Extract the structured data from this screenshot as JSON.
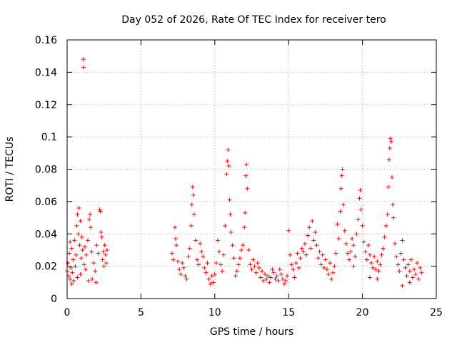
{
  "chart_data": {
    "type": "scatter",
    "title": "Day 052 of 2026, Rate Of TEC Index for receiver tero",
    "xlabel": "GPS time / hours",
    "ylabel": "ROTI / TECUs",
    "xlim": [
      0,
      25
    ],
    "ylim": [
      0,
      0.16
    ],
    "xticks": [
      0,
      5,
      10,
      15,
      20,
      25
    ],
    "xtick_labels": [
      "0",
      "5",
      "10",
      "15",
      "20",
      "25"
    ],
    "yticks": [
      0,
      0.02,
      0.04,
      0.06,
      0.08,
      0.1,
      0.12,
      0.14,
      0.16
    ],
    "ytick_labels": [
      "0",
      "0.02",
      "0.04",
      "0.06",
      "0.08",
      "0.1",
      "0.12",
      "0.14",
      "0.16"
    ],
    "grid": true,
    "marker": "+",
    "color": "#ff0000",
    "series": [
      {
        "points": [
          [
            0.0,
            0.017
          ],
          [
            0.05,
            0.022
          ],
          [
            0.1,
            0.014
          ],
          [
            0.15,
            0.028
          ],
          [
            0.2,
            0.012
          ],
          [
            0.25,
            0.019
          ],
          [
            0.3,
            0.031
          ],
          [
            0.35,
            0.016
          ],
          [
            0.4,
            0.024
          ],
          [
            0.45,
            0.011
          ],
          [
            0.5,
            0.036
          ],
          [
            0.55,
            0.02
          ],
          [
            0.6,
            0.027
          ],
          [
            0.65,
            0.045
          ],
          [
            0.7,
            0.052
          ],
          [
            0.75,
            0.04
          ],
          [
            0.8,
            0.056
          ],
          [
            0.85,
            0.033
          ],
          [
            0.9,
            0.048
          ],
          [
            0.95,
            0.025
          ],
          [
            1.0,
            0.038
          ],
          [
            1.05,
            0.03
          ],
          [
            1.1,
            0.148
          ],
          [
            1.12,
            0.143
          ],
          [
            1.15,
            0.021
          ],
          [
            1.2,
            0.032
          ],
          [
            1.25,
            0.018
          ],
          [
            1.3,
            0.027
          ],
          [
            1.4,
            0.036
          ],
          [
            1.5,
            0.049
          ],
          [
            1.55,
            0.052
          ],
          [
            1.6,
            0.044
          ],
          [
            1.65,
            0.029
          ],
          [
            1.7,
            0.012
          ],
          [
            1.8,
            0.022
          ],
          [
            1.9,
            0.017
          ],
          [
            2.0,
            0.033
          ],
          [
            2.1,
            0.028
          ],
          [
            2.2,
            0.055
          ],
          [
            2.25,
            0.054
          ],
          [
            2.3,
            0.041
          ],
          [
            2.35,
            0.038
          ],
          [
            2.4,
            0.024
          ],
          [
            2.45,
            0.029
          ],
          [
            2.5,
            0.02
          ],
          [
            2.55,
            0.033
          ],
          [
            2.6,
            0.027
          ],
          [
            2.65,
            0.022
          ],
          [
            2.7,
            0.03
          ],
          [
            0.3,
            0.009
          ],
          [
            0.7,
            0.013
          ],
          [
            1.45,
            0.011
          ],
          [
            1.95,
            0.01
          ],
          [
            0.2,
            0.035
          ],
          [
            0.9,
            0.015
          ],
          [
            7.1,
            0.028
          ],
          [
            7.2,
            0.024
          ],
          [
            7.3,
            0.044
          ],
          [
            7.35,
            0.037
          ],
          [
            7.4,
            0.033
          ],
          [
            7.5,
            0.023
          ],
          [
            7.6,
            0.018
          ],
          [
            7.7,
            0.015
          ],
          [
            7.8,
            0.022
          ],
          [
            7.9,
            0.019
          ],
          [
            8.0,
            0.014
          ],
          [
            8.1,
            0.012
          ],
          [
            8.2,
            0.026
          ],
          [
            8.3,
            0.031
          ],
          [
            8.4,
            0.045
          ],
          [
            8.45,
            0.058
          ],
          [
            8.5,
            0.069
          ],
          [
            8.55,
            0.064
          ],
          [
            8.6,
            0.052
          ],
          [
            8.7,
            0.036
          ],
          [
            8.8,
            0.024
          ],
          [
            8.9,
            0.021
          ],
          [
            9.0,
            0.034
          ],
          [
            9.1,
            0.029
          ],
          [
            9.2,
            0.026
          ],
          [
            9.3,
            0.019
          ],
          [
            9.4,
            0.016
          ],
          [
            9.5,
            0.022
          ],
          [
            9.6,
            0.012
          ],
          [
            9.7,
            0.009
          ],
          [
            9.8,
            0.014
          ],
          [
            9.9,
            0.01
          ],
          [
            10.0,
            0.015
          ],
          [
            10.1,
            0.022
          ],
          [
            10.2,
            0.036
          ],
          [
            10.3,
            0.029
          ],
          [
            10.4,
            0.021
          ],
          [
            10.5,
            0.017
          ],
          [
            10.6,
            0.027
          ],
          [
            10.7,
            0.045
          ],
          [
            10.8,
            0.077
          ],
          [
            10.85,
            0.085
          ],
          [
            10.9,
            0.092
          ],
          [
            10.95,
            0.082
          ],
          [
            11.0,
            0.061
          ],
          [
            11.05,
            0.052
          ],
          [
            11.1,
            0.041
          ],
          [
            11.2,
            0.033
          ],
          [
            11.3,
            0.025
          ],
          [
            11.4,
            0.014
          ],
          [
            11.5,
            0.017
          ],
          [
            11.6,
            0.021
          ],
          [
            11.7,
            0.025
          ],
          [
            11.8,
            0.03
          ],
          [
            11.9,
            0.033
          ],
          [
            12.0,
            0.044
          ],
          [
            12.05,
            0.053
          ],
          [
            12.1,
            0.076
          ],
          [
            12.15,
            0.083
          ],
          [
            12.2,
            0.068
          ],
          [
            12.3,
            0.03
          ],
          [
            12.4,
            0.021
          ],
          [
            12.5,
            0.018
          ],
          [
            12.6,
            0.024
          ],
          [
            12.7,
            0.02
          ],
          [
            12.8,
            0.016
          ],
          [
            12.9,
            0.022
          ],
          [
            13.0,
            0.019
          ],
          [
            13.1,
            0.013
          ],
          [
            13.2,
            0.017
          ],
          [
            13.3,
            0.011
          ],
          [
            13.4,
            0.015
          ],
          [
            13.5,
            0.012
          ],
          [
            13.6,
            0.014
          ],
          [
            13.7,
            0.01
          ],
          [
            13.8,
            0.013
          ],
          [
            13.9,
            0.018
          ],
          [
            14.0,
            0.016
          ],
          [
            14.1,
            0.012
          ],
          [
            14.2,
            0.014
          ],
          [
            14.3,
            0.011
          ],
          [
            14.4,
            0.018
          ],
          [
            14.5,
            0.015
          ],
          [
            14.6,
            0.012
          ],
          [
            14.7,
            0.009
          ],
          [
            14.8,
            0.011
          ],
          [
            14.9,
            0.014
          ],
          [
            15.0,
            0.042
          ],
          [
            15.1,
            0.027
          ],
          [
            15.2,
            0.021
          ],
          [
            15.3,
            0.018
          ],
          [
            15.4,
            0.013
          ],
          [
            15.5,
            0.022
          ],
          [
            15.6,
            0.028
          ],
          [
            15.7,
            0.019
          ],
          [
            15.8,
            0.025
          ],
          [
            15.9,
            0.031
          ],
          [
            16.0,
            0.029
          ],
          [
            16.1,
            0.034
          ],
          [
            16.2,
            0.027
          ],
          [
            16.3,
            0.039
          ],
          [
            16.4,
            0.044
          ],
          [
            16.5,
            0.031
          ],
          [
            16.6,
            0.048
          ],
          [
            16.7,
            0.036
          ],
          [
            16.8,
            0.041
          ],
          [
            16.9,
            0.033
          ],
          [
            17.0,
            0.025
          ],
          [
            17.1,
            0.029
          ],
          [
            17.2,
            0.021
          ],
          [
            17.3,
            0.027
          ],
          [
            17.4,
            0.019
          ],
          [
            17.5,
            0.024
          ],
          [
            17.6,
            0.018
          ],
          [
            17.7,
            0.015
          ],
          [
            17.8,
            0.022
          ],
          [
            17.9,
            0.012
          ],
          [
            18.0,
            0.016
          ],
          [
            18.1,
            0.02
          ],
          [
            18.2,
            0.028
          ],
          [
            18.3,
            0.046
          ],
          [
            18.4,
            0.037
          ],
          [
            18.5,
            0.054
          ],
          [
            18.55,
            0.068
          ],
          [
            18.6,
            0.076
          ],
          [
            18.65,
            0.08
          ],
          [
            18.7,
            0.058
          ],
          [
            18.8,
            0.042
          ],
          [
            18.9,
            0.034
          ],
          [
            19.0,
            0.028
          ],
          [
            19.1,
            0.024
          ],
          [
            19.2,
            0.029
          ],
          [
            19.3,
            0.037
          ],
          [
            19.4,
            0.033
          ],
          [
            19.5,
            0.026
          ],
          [
            19.6,
            0.04
          ],
          [
            19.7,
            0.049
          ],
          [
            19.8,
            0.062
          ],
          [
            19.85,
            0.067
          ],
          [
            19.9,
            0.055
          ],
          [
            20.0,
            0.045
          ],
          [
            20.1,
            0.035
          ],
          [
            20.2,
            0.029
          ],
          [
            20.3,
            0.024
          ],
          [
            20.4,
            0.033
          ],
          [
            20.5,
            0.027
          ],
          [
            20.6,
            0.022
          ],
          [
            20.7,
            0.019
          ],
          [
            20.8,
            0.026
          ],
          [
            20.9,
            0.018
          ],
          [
            21.0,
            0.023
          ],
          [
            21.1,
            0.017
          ],
          [
            21.2,
            0.021
          ],
          [
            21.3,
            0.027
          ],
          [
            21.4,
            0.031
          ],
          [
            21.5,
            0.038
          ],
          [
            21.6,
            0.045
          ],
          [
            21.7,
            0.052
          ],
          [
            21.75,
            0.069
          ],
          [
            21.8,
            0.086
          ],
          [
            21.85,
            0.093
          ],
          [
            21.9,
            0.099
          ],
          [
            21.95,
            0.097
          ],
          [
            22.0,
            0.075
          ],
          [
            22.05,
            0.058
          ],
          [
            22.1,
            0.05
          ],
          [
            22.2,
            0.034
          ],
          [
            22.3,
            0.026
          ],
          [
            22.4,
            0.021
          ],
          [
            22.5,
            0.017
          ],
          [
            22.6,
            0.028
          ],
          [
            22.7,
            0.036
          ],
          [
            22.8,
            0.024
          ],
          [
            22.9,
            0.019
          ],
          [
            23.0,
            0.014
          ],
          [
            23.1,
            0.021
          ],
          [
            23.2,
            0.017
          ],
          [
            23.3,
            0.024
          ],
          [
            23.4,
            0.013
          ],
          [
            23.5,
            0.018
          ],
          [
            23.6,
            0.015
          ],
          [
            23.7,
            0.022
          ],
          [
            23.8,
            0.012
          ],
          [
            23.9,
            0.019
          ],
          [
            24.0,
            0.016
          ],
          [
            21.0,
            0.012
          ],
          [
            22.7,
            0.008
          ],
          [
            19.4,
            0.02
          ],
          [
            20.5,
            0.013
          ],
          [
            23.2,
            0.01
          ]
        ]
      }
    ]
  }
}
